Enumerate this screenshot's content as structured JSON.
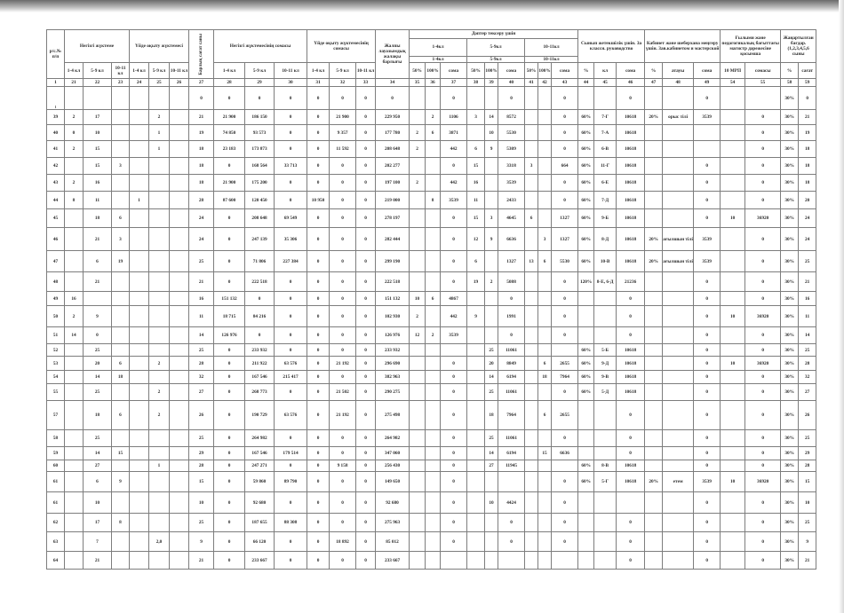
{
  "header": {
    "row_no": "р/с.№ п/п",
    "main_load": "Негізгі жүктеме",
    "home_load": "Үйде оқыту жүктемесі",
    "total_hours": "Барлық сағат саны",
    "main_load_sum": "Негізгі жүктемесінің сомасы",
    "home_load_sum": "Үйде оқыту жүктемесінің сомасы",
    "total_salary": "Жалпы лауазымдық жалақы барлығы",
    "notebook_check": "Дәптер тексеру үшін",
    "class_teacher": "Сынып жетекшілік үшін. За классн. руководство",
    "cabinet": "Кабинет және шеберхана меңгеру үшін. Зав.кабинетом и мастерской",
    "master_degree": "Ғылыми және педагогикалық бағыттағы магистр дәрежесіне қосымша",
    "updated_program": "Жаңартылған бағдар. (1,2,3,4,5,6 сыны",
    "grades": [
      "1-4 кл",
      "5-9 кл",
      "10-11 кл"
    ],
    "notebook_grades": [
      "1-4кл",
      "5-9кл",
      "10-11кл"
    ],
    "pct_50": "50%",
    "pct_100": "100%",
    "sum": "сома",
    "pct": "%",
    "class": "кл",
    "name": "атауы",
    "mrp10": "10 МРП",
    "sum2": "сомасы",
    "hours": "сағат"
  },
  "column_numbers": [
    "1",
    "21",
    "22",
    "23",
    "24",
    "25",
    "26",
    "27",
    "28",
    "29",
    "30",
    "31",
    "32",
    "33",
    "34",
    "35",
    "36",
    "37",
    "38",
    "39",
    "40",
    "41",
    "42",
    "43",
    "44",
    "45",
    "46",
    "47",
    "48",
    "49",
    "54",
    "55",
    "58",
    "59"
  ],
  "rows": [
    [
      "1",
      "",
      "",
      "",
      "",
      "",
      "",
      "0",
      "0",
      "0",
      "0",
      "0",
      "0",
      "0",
      "0",
      "",
      "",
      "0",
      "",
      "",
      "0",
      "",
      "",
      "0",
      "",
      "",
      "0",
      "",
      "",
      "0",
      "",
      "",
      "30%",
      "0"
    ],
    [
      "39",
      "2",
      "17",
      "",
      "",
      "2",
      "",
      "21",
      "21 900",
      "186 150",
      "0",
      "0",
      "21 900",
      "0",
      "229 950",
      "",
      "2",
      "1106",
      "3",
      "14",
      "8572",
      "",
      "",
      "0",
      "60%",
      "7-Г",
      "10618",
      "20%",
      "орыс тілі",
      "3539",
      "",
      "0",
      "30%",
      "21"
    ],
    [
      "40",
      "0",
      "10",
      "",
      "",
      "1",
      "",
      "19",
      "74 850",
      "93 573",
      "0",
      "0",
      "9 357",
      "0",
      "177 780",
      "2",
      "6",
      "3871",
      "",
      "10",
      "5530",
      "",
      "",
      "0",
      "60%",
      "7-А",
      "10618",
      "",
      "",
      "",
      "",
      "0",
      "30%",
      "19"
    ],
    [
      "41",
      "2",
      "15",
      "",
      "",
      "1",
      "",
      "18",
      "23 183",
      "173 873",
      "0",
      "0",
      "11 592",
      "0",
      "208 648",
      "2",
      "",
      "442",
      "6",
      "9",
      "5309",
      "",
      "",
      "0",
      "60%",
      "6-В",
      "10618",
      "",
      "",
      "",
      "",
      "0",
      "30%",
      "18"
    ],
    [
      "42",
      "",
      "15",
      "3",
      "",
      "",
      "",
      "18",
      "0",
      "168 564",
      "33 713",
      "0",
      "0",
      "0",
      "202 277",
      "",
      "",
      "0",
      "15",
      "",
      "3318",
      "3",
      "",
      "664",
      "60%",
      "11-Г",
      "10618",
      "",
      "",
      "0",
      "",
      "0",
      "30%",
      "18"
    ],
    [
      "43",
      "2",
      "16",
      "",
      "",
      "",
      "",
      "18",
      "21 900",
      "175 200",
      "0",
      "0",
      "0",
      "0",
      "197 100",
      "2",
      "",
      "442",
      "16",
      "",
      "3539",
      "",
      "",
      "0",
      "60%",
      "6-Е",
      "10618",
      "",
      "",
      "0",
      "",
      "0",
      "30%",
      "18"
    ],
    [
      "44",
      "8",
      "11",
      "",
      "1",
      "",
      "",
      "28",
      "87 600",
      "120 450",
      "0",
      "10 950",
      "0",
      "0",
      "219 000",
      "",
      "8",
      "3539",
      "11",
      "",
      "2433",
      "",
      "",
      "0",
      "60%",
      "7-Д",
      "10618",
      "",
      "",
      "0",
      "",
      "0",
      "30%",
      "20"
    ],
    [
      "45",
      "",
      "18",
      "6",
      "",
      "",
      "",
      "24",
      "0",
      "208 648",
      "69 549",
      "0",
      "0",
      "0",
      "278 197",
      "",
      "",
      "0",
      "15",
      "3",
      "4645",
      "6",
      "",
      "1327",
      "60%",
      "9-Б",
      "10618",
      "",
      "",
      "0",
      "10",
      "36920",
      "30%",
      "24"
    ],
    [
      "46",
      "",
      "21",
      "3",
      "",
      "",
      "",
      "24",
      "0",
      "247 139",
      "35 306",
      "0",
      "0",
      "0",
      "282 444",
      "",
      "",
      "0",
      "12",
      "9",
      "6636",
      "",
      "3",
      "1327",
      "60%",
      "8-Д",
      "10618",
      "20%",
      "ағылшын тілі",
      "3539",
      "",
      "0",
      "30%",
      "24"
    ],
    [
      "47",
      "",
      "6",
      "19",
      "",
      "",
      "",
      "25",
      "0",
      "71 806",
      "227 384",
      "0",
      "0",
      "0",
      "299 190",
      "",
      "",
      "0",
      "6",
      "",
      "1327",
      "13",
      "6",
      "5530",
      "60%",
      "10-В",
      "10618",
      "20%",
      "ағылшын тілі",
      "3539",
      "",
      "0",
      "30%",
      "25"
    ],
    [
      "48",
      "",
      "21",
      "",
      "",
      "",
      "",
      "21",
      "0",
      "222 518",
      "0",
      "0",
      "0",
      "0",
      "222 518",
      "",
      "",
      "0",
      "19",
      "2",
      "5088",
      "",
      "",
      "0",
      "120%",
      "8-Е, 6-Д",
      "21236",
      "",
      "",
      "0",
      "",
      "0",
      "30%",
      "21"
    ],
    [
      "49",
      "16",
      "",
      "",
      "",
      "",
      "",
      "16",
      "151 132",
      "0",
      "0",
      "0",
      "0",
      "0",
      "151 132",
      "10",
      "6",
      "4867",
      "",
      "",
      "0",
      "",
      "",
      "0",
      "",
      "",
      "0",
      "",
      "",
      "0",
      "",
      "0",
      "30%",
      "16"
    ],
    [
      "50",
      "2",
      "9",
      "",
      "",
      "",
      "",
      "11",
      "18 715",
      "84 216",
      "0",
      "0",
      "0",
      "0",
      "102 930",
      "2",
      "",
      "442",
      "9",
      "",
      "1991",
      "",
      "",
      "0",
      "",
      "",
      "0",
      "",
      "",
      "0",
      "10",
      "36920",
      "30%",
      "11"
    ],
    [
      "51",
      "14",
      "0",
      "",
      "",
      "",
      "",
      "14",
      "126 976",
      "0",
      "0",
      "0",
      "0",
      "0",
      "126 976",
      "12",
      "2",
      "3539",
      "",
      "",
      "0",
      "",
      "",
      "0",
      "",
      "",
      "0",
      "",
      "",
      "0",
      "",
      "0",
      "30%",
      "14"
    ],
    [
      "52",
      "",
      "25",
      "",
      "",
      "",
      "",
      "25",
      "0",
      "233 932",
      "0",
      "0",
      "0",
      "0",
      "233 932",
      "",
      "",
      "",
      "",
      "25",
      "11061",
      "",
      "",
      "",
      "60%",
      "5-Б",
      "10618",
      "",
      "",
      "0",
      "",
      "0",
      "30%",
      "25"
    ],
    [
      "53",
      "",
      "20",
      "6",
      "",
      "2",
      "",
      "28",
      "0",
      "211 922",
      "63 576",
      "0",
      "21 192",
      "0",
      "296 690",
      "",
      "",
      "0",
      "",
      "20",
      "8849",
      "",
      "6",
      "2655",
      "60%",
      "9-Д",
      "10618",
      "",
      "",
      "0",
      "10",
      "36920",
      "30%",
      "28"
    ],
    [
      "54",
      "",
      "14",
      "18",
      "",
      "",
      "",
      "32",
      "0",
      "167 546",
      "215 417",
      "0",
      "0",
      "0",
      "382 963",
      "",
      "",
      "0",
      "",
      "14",
      "6194",
      "",
      "18",
      "7964",
      "60%",
      "9-В",
      "10618",
      "",
      "",
      "0",
      "",
      "0",
      "30%",
      "32"
    ],
    [
      "55",
      "",
      "25",
      "",
      "",
      "2",
      "",
      "27",
      "0",
      "268 773",
      "0",
      "0",
      "21 502",
      "0",
      "290 275",
      "",
      "",
      "0",
      "",
      "25",
      "11061",
      "",
      "",
      "0",
      "60%",
      "5-Д",
      "10618",
      "",
      "",
      "0",
      "",
      "0",
      "30%",
      "27"
    ],
    [
      "57",
      "",
      "18",
      "6",
      "",
      "2",
      "",
      "26",
      "0",
      "190 729",
      "63 576",
      "0",
      "21 192",
      "0",
      "275 498",
      "",
      "",
      "0",
      "",
      "18",
      "7964",
      "",
      "6",
      "2655",
      "",
      "",
      "0",
      "",
      "",
      "0",
      "",
      "0",
      "30%",
      "26"
    ],
    [
      "58",
      "",
      "25",
      "",
      "",
      "",
      "",
      "25",
      "0",
      "264 982",
      "0",
      "0",
      "0",
      "0",
      "264 982",
      "",
      "",
      "0",
      "",
      "25",
      "11061",
      "",
      "",
      "0",
      "",
      "",
      "0",
      "",
      "",
      "0",
      "",
      "0",
      "30%",
      "25"
    ],
    [
      "59",
      "",
      "14",
      "15",
      "",
      "",
      "",
      "29",
      "0",
      "167 546",
      "179 514",
      "0",
      "0",
      "0",
      "347 060",
      "",
      "",
      "0",
      "",
      "14",
      "6194",
      "",
      "15",
      "6636",
      "",
      "",
      "0",
      "",
      "",
      "0",
      "",
      "0",
      "30%",
      "29"
    ],
    [
      "60",
      "",
      "27",
      "",
      "",
      "1",
      "",
      "28",
      "0",
      "247 271",
      "0",
      "0",
      "9 158",
      "0",
      "256 430",
      "",
      "",
      "0",
      "",
      "27",
      "11945",
      "",
      "",
      "",
      "60%",
      "8-В",
      "10618",
      "",
      "",
      "0",
      "",
      "0",
      "30%",
      "28"
    ],
    [
      "61",
      "",
      "6",
      "9",
      "",
      "",
      "",
      "15",
      "0",
      "59 860",
      "89 790",
      "0",
      "0",
      "0",
      "149 650",
      "",
      "",
      "0",
      "",
      "",
      "",
      "",
      "",
      "0",
      "60%",
      "5-Г",
      "10618",
      "20%",
      "етем",
      "3539",
      "10",
      "36920",
      "30%",
      "15"
    ],
    [
      "61",
      "",
      "10",
      "",
      "",
      "",
      "",
      "10",
      "0",
      "92 680",
      "0",
      "0",
      "0",
      "0",
      "92 680",
      "",
      "",
      "0",
      "",
      "10",
      "4424",
      "",
      "",
      "0",
      "",
      "",
      "",
      "",
      "",
      "0",
      "",
      "0",
      "30%",
      "10"
    ],
    [
      "62",
      "",
      "17",
      "8",
      "",
      "",
      "",
      "25",
      "0",
      "187 655",
      "88 308",
      "0",
      "0",
      "0",
      "275 963",
      "",
      "",
      "0",
      "",
      "",
      "0",
      "",
      "",
      "0",
      "",
      "",
      "0",
      "",
      "",
      "0",
      "",
      "0",
      "30%",
      "25"
    ],
    [
      "63",
      "",
      "7",
      "",
      "",
      "2,0",
      "",
      "9",
      "0",
      "66 120",
      "0",
      "0",
      "18 892",
      "0",
      "85 012",
      "",
      "",
      "0",
      "",
      "",
      "0",
      "",
      "",
      "0",
      "",
      "",
      "0",
      "",
      "",
      "0",
      "",
      "0",
      "30%",
      "9"
    ],
    [
      "64",
      "",
      "21",
      "",
      "",
      "",
      "",
      "21",
      "0",
      "233 667",
      "0",
      "0",
      "0",
      "0",
      "233 667",
      "",
      "",
      "",
      "",
      "",
      "",
      "",
      "",
      "",
      "",
      "",
      "0",
      "",
      "",
      "0",
      "",
      "0",
      "30%",
      "21"
    ]
  ]
}
